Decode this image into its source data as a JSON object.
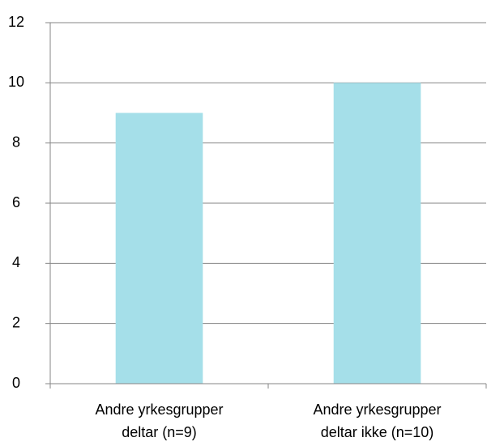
{
  "chart_data": {
    "type": "bar",
    "categories": [
      "Andre yrkesgrupper deltar (n=9)",
      "Andre yrkesgrupper deltar ikke (n=10)"
    ],
    "values": [
      9,
      10
    ],
    "color": "#a5dfe9",
    "ylim": [
      0,
      12
    ],
    "yticks": [
      0,
      2,
      4,
      6,
      8,
      10,
      12
    ],
    "grid": true
  }
}
